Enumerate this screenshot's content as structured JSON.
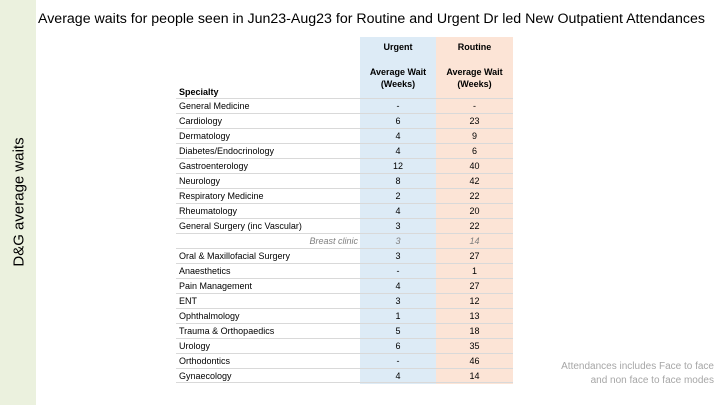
{
  "side_title": "D&G average waits",
  "title": "Average waits for people seen in Jun23-Aug23 for Routine and Urgent Dr led New Outpatient Attendances",
  "table": {
    "specialty_header": "Specialty",
    "urgent_header": "Urgent",
    "routine_header": "Routine",
    "urgent_subheader_line1": "Average Wait",
    "urgent_subheader_line2": "(Weeks)",
    "routine_subheader_line1": "Average Wait",
    "routine_subheader_line2": "(Weeks)",
    "rows": [
      {
        "specialty": "General Medicine",
        "urgent": "-",
        "routine": "-"
      },
      {
        "specialty": "Cardiology",
        "urgent": "6",
        "routine": "23"
      },
      {
        "specialty": "Dermatology",
        "urgent": "4",
        "routine": "9"
      },
      {
        "specialty": "Diabetes/Endocrinology",
        "urgent": "4",
        "routine": "6"
      },
      {
        "specialty": "Gastroenterology",
        "urgent": "12",
        "routine": "40"
      },
      {
        "specialty": "Neurology",
        "urgent": "8",
        "routine": "42"
      },
      {
        "specialty": "Respiratory Medicine",
        "urgent": "2",
        "routine": "22"
      },
      {
        "specialty": "Rheumatology",
        "urgent": "4",
        "routine": "20"
      },
      {
        "specialty": "General Surgery (inc Vascular)",
        "urgent": "3",
        "routine": "22"
      },
      {
        "specialty": "Breast clinic",
        "urgent": "3",
        "routine": "14"
      },
      {
        "specialty": "Oral & Maxillofacial Surgery",
        "urgent": "3",
        "routine": "27"
      },
      {
        "specialty": "Anaesthetics",
        "urgent": "-",
        "routine": "1"
      },
      {
        "specialty": "Pain Management",
        "urgent": "4",
        "routine": "27"
      },
      {
        "specialty": "ENT",
        "urgent": "3",
        "routine": "12"
      },
      {
        "specialty": "Ophthalmology",
        "urgent": "1",
        "routine": "13"
      },
      {
        "specialty": "Trauma & Orthopaedics",
        "urgent": "5",
        "routine": "18"
      },
      {
        "specialty": "Urology",
        "urgent": "6",
        "routine": "35"
      },
      {
        "specialty": "Orthodontics",
        "urgent": "-",
        "routine": "46"
      },
      {
        "specialty": "Gynaecology",
        "urgent": "4",
        "routine": "14"
      }
    ]
  },
  "footnote": "Attendances includes Face to face and non face to face modes",
  "colors": {
    "side_band": "#ebf1de",
    "urgent_column": "#ddebf6",
    "routine_column": "#fce4d6",
    "subrow_text": "#7f7f7f",
    "footnote_text": "#a6a6a6"
  }
}
